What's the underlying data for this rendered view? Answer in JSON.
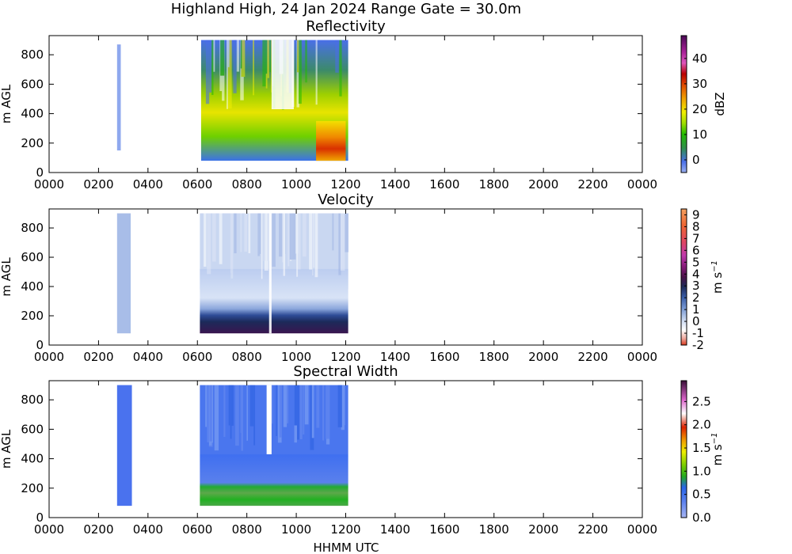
{
  "figure": {
    "suptitle": "Highland High, 24 Jan 2024 Range Gate = 30.0m",
    "xlabel": "HHMM UTC"
  },
  "chart_data": [
    {
      "type": "heatmap",
      "title": "Reflectivity",
      "ylabel": "m AGL",
      "xlabel": "",
      "x_ticks": [
        "0000",
        "0200",
        "0400",
        "0600",
        "0800",
        "1000",
        "1200",
        "1400",
        "1600",
        "1800",
        "2000",
        "2200",
        "0000"
      ],
      "y_ticks": [
        0,
        200,
        400,
        600,
        800
      ],
      "xlim_hours": [
        0,
        24
      ],
      "ylim": [
        0,
        930
      ],
      "colorbar": {
        "label": "dBZ",
        "ticks": [
          "0",
          "10",
          "20",
          "30",
          "40"
        ],
        "range": [
          -5,
          49
        ]
      },
      "colors": [
        "#7799ee",
        "#3366ee",
        "#00bb00",
        "#88dd00",
        "#eeee00",
        "#ee7700",
        "#cc0000",
        "#cc44aa",
        "#660066"
      ],
      "data_regions": [
        {
          "t_start": 2.75,
          "t_end": 2.9,
          "z_min": 150,
          "z_max": 870,
          "level": "light"
        },
        {
          "t_start": 6.15,
          "t_end": 12.1,
          "z_min": 80,
          "z_max": 900,
          "level": "mixed"
        },
        {
          "t_start": 10.8,
          "t_end": 12.0,
          "z_min": 80,
          "z_max": 350,
          "level": "max ~35 dBZ"
        }
      ]
    },
    {
      "type": "heatmap",
      "title": "Velocity",
      "ylabel": "m s^-1 / m AGL",
      "xlabel": "",
      "x_ticks": [
        "0000",
        "0200",
        "0400",
        "0600",
        "0800",
        "1000",
        "1200",
        "1400",
        "1600",
        "1800",
        "2000",
        "2200",
        "0000"
      ],
      "y_ticks": [
        0,
        200,
        400,
        600,
        800
      ],
      "xlim_hours": [
        0,
        24
      ],
      "ylim": [
        0,
        930
      ],
      "colorbar": {
        "label": "m s",
        "label_sup": "−1",
        "ticks": [
          "-2",
          "-1",
          "0",
          "1",
          "2",
          "3",
          "4",
          "5",
          "6",
          "7",
          "8",
          "9"
        ],
        "range": [
          -2,
          9.5
        ]
      },
      "colors": [
        "#dd3322",
        "#eebbbb",
        "#ffffff",
        "#c8d8f0",
        "#8eaadd",
        "#4466aa",
        "#223366",
        "#661166",
        "#aa2288",
        "#dd55cc",
        "#dd66aa",
        "#ee8844"
      ],
      "data_regions": [
        {
          "t_start": 2.75,
          "t_end": 3.3,
          "z_min": 80,
          "z_max": 900,
          "level": "weak"
        },
        {
          "t_start": 6.1,
          "t_end": 12.1,
          "z_min": 380,
          "z_max": 900,
          "level": "~1 m/s"
        },
        {
          "t_start": 6.1,
          "t_end": 12.1,
          "z_min": 80,
          "z_max": 380,
          "level": "~3-5 m/s"
        }
      ]
    },
    {
      "type": "heatmap",
      "title": "Spectral Width",
      "ylabel": "m AGL",
      "xlabel": "HHMM UTC",
      "x_ticks": [
        "0000",
        "0200",
        "0400",
        "0600",
        "0800",
        "1000",
        "1200",
        "1400",
        "1600",
        "1800",
        "2000",
        "2200",
        "0000"
      ],
      "y_ticks": [
        0,
        200,
        400,
        600,
        800
      ],
      "xlim_hours": [
        0,
        24
      ],
      "ylim": [
        0,
        930
      ],
      "colorbar": {
        "label": "m s",
        "label_sup": "−1",
        "ticks": [
          "0.0",
          "0.5",
          "1.0",
          "1.5",
          "2.0",
          "2.5"
        ],
        "range": [
          0,
          2.95
        ]
      },
      "colors": [
        "#99aaee",
        "#4477ee",
        "#22aa22",
        "#88dd00",
        "#eeee00",
        "#ee8800",
        "#cc1100",
        "#ee88cc",
        "#aa3399",
        "#552255"
      ],
      "data_regions": [
        {
          "t_start": 2.75,
          "t_end": 3.35,
          "z_min": 80,
          "z_max": 900,
          "level": "~0.3"
        },
        {
          "t_start": 6.1,
          "t_end": 12.1,
          "z_min": 430,
          "z_max": 900,
          "level": "~0.3"
        },
        {
          "t_start": 6.1,
          "t_end": 12.1,
          "z_min": 80,
          "z_max": 430,
          "level": "~0.8-1.0"
        }
      ]
    }
  ]
}
